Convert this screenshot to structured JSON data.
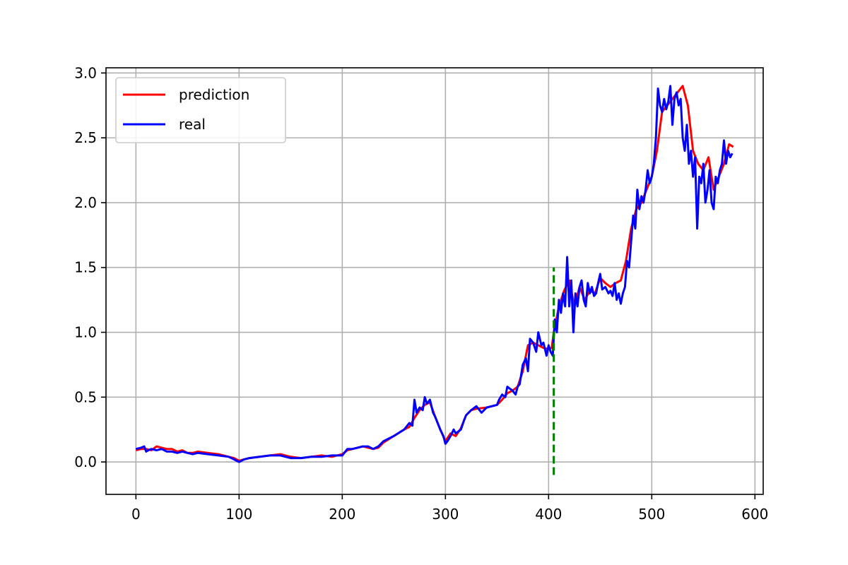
{
  "chart_data": {
    "type": "line",
    "title": "",
    "xlabel": "",
    "ylabel": "",
    "xlim": [
      -29,
      608
    ],
    "ylim": [
      -0.25,
      3.04
    ],
    "xticks": [
      0,
      100,
      200,
      300,
      400,
      500,
      600
    ],
    "yticks": [
      0.0,
      0.5,
      1.0,
      1.5,
      2.0,
      2.5,
      3.0
    ],
    "xtick_labels": [
      "0",
      "100",
      "200",
      "300",
      "400",
      "500",
      "600"
    ],
    "ytick_labels": [
      "0.0",
      "0.5",
      "1.0",
      "1.5",
      "2.0",
      "2.5",
      "3.0"
    ],
    "grid": true,
    "legend_position": "upper-left",
    "series": [
      {
        "name": "prediction",
        "color": "#ff0000",
        "x": [
          0,
          5,
          10,
          15,
          20,
          25,
          30,
          35,
          40,
          45,
          50,
          55,
          60,
          70,
          80,
          90,
          95,
          100,
          105,
          110,
          120,
          130,
          140,
          150,
          160,
          170,
          180,
          190,
          200,
          205,
          210,
          220,
          225,
          230,
          235,
          240,
          250,
          260,
          265,
          270,
          275,
          280,
          285,
          290,
          295,
          300,
          305,
          310,
          315,
          320,
          325,
          330,
          340,
          350,
          355,
          360,
          365,
          370,
          375,
          380,
          385,
          390,
          395,
          400,
          403,
          405,
          410,
          415,
          420,
          425,
          430,
          435,
          440,
          445,
          450,
          455,
          460,
          465,
          470,
          475,
          480,
          485,
          490,
          495,
          500,
          505,
          510,
          515,
          520,
          525,
          530,
          535,
          540,
          545,
          550,
          555,
          560,
          565,
          570,
          575,
          579
        ],
        "y": [
          0.09,
          0.1,
          0.1,
          0.09,
          0.12,
          0.11,
          0.1,
          0.1,
          0.08,
          0.09,
          0.07,
          0.07,
          0.08,
          0.07,
          0.06,
          0.04,
          0.03,
          0.01,
          0.02,
          0.03,
          0.04,
          0.05,
          0.06,
          0.04,
          0.03,
          0.04,
          0.05,
          0.04,
          0.06,
          0.09,
          0.1,
          0.12,
          0.11,
          0.1,
          0.11,
          0.15,
          0.2,
          0.25,
          0.27,
          0.34,
          0.4,
          0.44,
          0.46,
          0.35,
          0.25,
          0.16,
          0.22,
          0.2,
          0.26,
          0.36,
          0.4,
          0.41,
          0.42,
          0.44,
          0.48,
          0.53,
          0.55,
          0.58,
          0.7,
          0.9,
          0.92,
          0.9,
          0.88,
          0.87,
          0.88,
          1.0,
          1.2,
          1.32,
          1.4,
          1.2,
          1.35,
          1.25,
          1.32,
          1.3,
          1.42,
          1.38,
          1.35,
          1.38,
          1.4,
          1.55,
          1.8,
          1.95,
          2.0,
          2.1,
          2.2,
          2.4,
          2.7,
          2.75,
          2.8,
          2.85,
          2.9,
          2.75,
          2.4,
          2.3,
          2.25,
          2.35,
          2.1,
          2.2,
          2.3,
          2.45,
          2.43
        ]
      },
      {
        "name": "real",
        "color": "#0000ff",
        "x": [
          0,
          5,
          8,
          10,
          12,
          15,
          20,
          25,
          30,
          35,
          40,
          45,
          50,
          55,
          60,
          70,
          80,
          90,
          95,
          100,
          105,
          110,
          120,
          130,
          140,
          150,
          160,
          170,
          180,
          190,
          200,
          205,
          210,
          220,
          225,
          230,
          235,
          240,
          250,
          260,
          265,
          268,
          270,
          272,
          275,
          278,
          280,
          282,
          285,
          288,
          290,
          295,
          298,
          300,
          302,
          305,
          308,
          310,
          315,
          318,
          320,
          325,
          330,
          335,
          340,
          345,
          350,
          352,
          355,
          358,
          360,
          365,
          368,
          370,
          372,
          375,
          378,
          380,
          382,
          385,
          388,
          390,
          393,
          395,
          398,
          400,
          402,
          404,
          406,
          408,
          410,
          412,
          414,
          416,
          418,
          420,
          422,
          424,
          426,
          428,
          430,
          432,
          434,
          436,
          438,
          440,
          442,
          444,
          446,
          448,
          450,
          452,
          455,
          458,
          460,
          462,
          464,
          466,
          468,
          470,
          472,
          474,
          476,
          478,
          480,
          482,
          484,
          486,
          488,
          490,
          492,
          494,
          496,
          498,
          500,
          502,
          504,
          506,
          508,
          510,
          512,
          514,
          516,
          518,
          520,
          522,
          524,
          526,
          528,
          530,
          532,
          534,
          536,
          538,
          540,
          542,
          544,
          546,
          548,
          550,
          552,
          554,
          556,
          558,
          560,
          562,
          564,
          566,
          568,
          570,
          572,
          574,
          576,
          578
        ],
        "y": [
          0.1,
          0.11,
          0.12,
          0.08,
          0.09,
          0.1,
          0.09,
          0.1,
          0.08,
          0.08,
          0.07,
          0.08,
          0.07,
          0.06,
          0.07,
          0.06,
          0.05,
          0.04,
          0.02,
          0.0,
          0.02,
          0.03,
          0.04,
          0.05,
          0.05,
          0.03,
          0.03,
          0.04,
          0.04,
          0.05,
          0.05,
          0.1,
          0.1,
          0.12,
          0.12,
          0.1,
          0.12,
          0.16,
          0.2,
          0.25,
          0.3,
          0.28,
          0.48,
          0.38,
          0.42,
          0.4,
          0.5,
          0.45,
          0.48,
          0.38,
          0.35,
          0.25,
          0.2,
          0.14,
          0.16,
          0.2,
          0.25,
          0.22,
          0.25,
          0.32,
          0.36,
          0.4,
          0.43,
          0.38,
          0.42,
          0.43,
          0.44,
          0.48,
          0.52,
          0.5,
          0.58,
          0.55,
          0.52,
          0.58,
          0.6,
          0.75,
          0.8,
          0.7,
          0.95,
          0.92,
          0.85,
          1.0,
          0.9,
          0.92,
          0.82,
          0.9,
          0.85,
          0.82,
          1.1,
          1.0,
          1.25,
          1.15,
          1.3,
          1.2,
          1.58,
          1.2,
          1.4,
          1.0,
          1.3,
          1.2,
          1.35,
          1.4,
          1.25,
          1.2,
          1.38,
          1.3,
          1.35,
          1.28,
          1.3,
          1.38,
          1.45,
          1.33,
          1.35,
          1.3,
          1.32,
          1.28,
          1.38,
          1.25,
          1.3,
          1.22,
          1.3,
          1.35,
          1.55,
          1.5,
          1.7,
          1.9,
          1.8,
          2.1,
          1.95,
          2.05,
          2.0,
          2.1,
          2.25,
          2.15,
          2.2,
          2.3,
          2.5,
          2.88,
          2.75,
          2.7,
          2.8,
          2.72,
          2.78,
          2.9,
          2.6,
          2.8,
          2.85,
          2.75,
          2.8,
          2.5,
          2.4,
          2.6,
          2.3,
          2.4,
          2.2,
          2.35,
          1.8,
          2.2,
          2.15,
          2.3,
          2.0,
          2.1,
          2.25,
          2.0,
          1.95,
          2.2,
          2.15,
          2.25,
          2.3,
          2.48,
          2.3,
          2.4,
          2.35,
          2.38
        ]
      }
    ],
    "annotations": [
      {
        "type": "vline",
        "x": 405,
        "y_from": -0.1,
        "y_to": 1.5,
        "style": "dashed",
        "color": "#008000"
      }
    ]
  }
}
